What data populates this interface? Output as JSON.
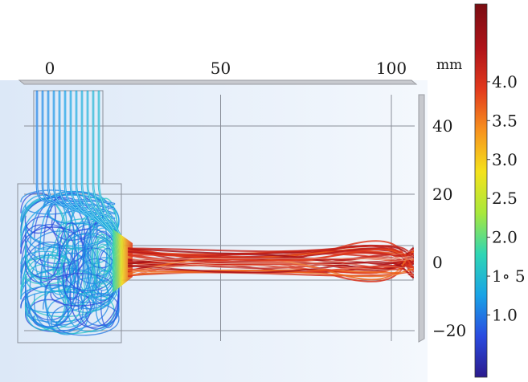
{
  "units_label": "mm",
  "x_ticks": [
    {
      "value": 0,
      "label": "0"
    },
    {
      "value": 50,
      "label": "50"
    },
    {
      "value": 100,
      "label": "100"
    }
  ],
  "y_ticks": [
    {
      "value": 40,
      "label": "40"
    },
    {
      "value": 20,
      "label": "20"
    },
    {
      "value": 0,
      "label": "0"
    },
    {
      "value": -20,
      "label": "−20"
    }
  ],
  "colorbar": {
    "min": 0.2,
    "max": 5.0,
    "labels": [
      {
        "value": 4.0,
        "label": "4.0"
      },
      {
        "value": 3.5,
        "label": "3.5"
      },
      {
        "value": 3.0,
        "label": "3.0"
      },
      {
        "value": 2.5,
        "label": "2.5"
      },
      {
        "value": 2.0,
        "label": "2.0"
      },
      {
        "value": 1.5,
        "label": "1∘ 5"
      },
      {
        "value": 1.0,
        "label": "1.0"
      }
    ],
    "colors": [
      "#2b1a8c",
      "#2a4be0",
      "#19a3e6",
      "#2fd6b4",
      "#a8e83c",
      "#f4e21c",
      "#f7931e",
      "#e23a1d",
      "#b0141a",
      "#7a0d12"
    ]
  },
  "geometry": {
    "inlet": {
      "x": [
        -4,
        15
      ],
      "y": [
        -20,
        50
      ]
    },
    "chamber": {
      "x": [
        -10,
        21
      ],
      "y": [
        -22,
        23
      ]
    },
    "outlet": {
      "x": [
        21,
        100
      ],
      "y": [
        -5,
        5
      ]
    }
  }
}
